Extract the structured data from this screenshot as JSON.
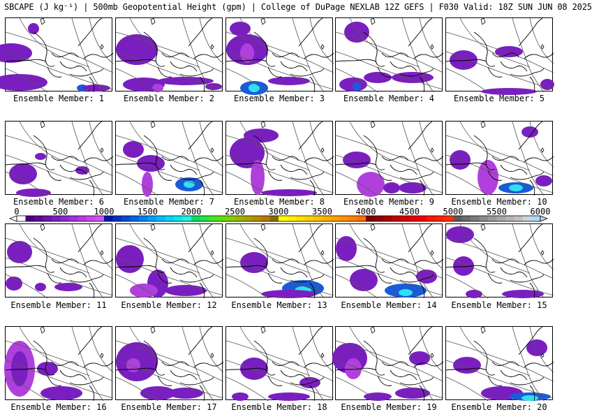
{
  "title": "SBCAPE (J kg⁻¹) | 500mb Geopotential Height (gpm) | College of DuPage NEXLAB 12Z GEFS | F030 Valid: 18Z SUN JUN 08 2025",
  "colorbar": {
    "tick_labels": [
      "0",
      "500",
      "1000",
      "1500",
      "2000",
      "2500",
      "3000",
      "3500",
      "4000",
      "4500",
      "5000",
      "5500",
      "6000"
    ],
    "segment_colors": [
      "#ffffff",
      "#4b0082",
      "#5a0a96",
      "#6a14aa",
      "#7a1ebe",
      "#8c28cc",
      "#a030d8",
      "#b43ce0",
      "#c848e8",
      "#d850ee",
      "#0018a8",
      "#0032c0",
      "#004cd4",
      "#0066e4",
      "#0082f0",
      "#00a0f8",
      "#00bcfc",
      "#00d6fc",
      "#00eaf4",
      "#20f4d8",
      "#00e060",
      "#20e440",
      "#40e820",
      "#60e000",
      "#80d000",
      "#98b800",
      "#a8a000",
      "#b48c00",
      "#b87800",
      "#8a6a00",
      "#ffff00",
      "#fff000",
      "#ffe000",
      "#ffd000",
      "#ffc000",
      "#ffb000",
      "#ffa000",
      "#ff9000",
      "#ff8000",
      "#ff7000",
      "#7a0000",
      "#900000",
      "#a80000",
      "#c00000",
      "#d80000",
      "#e80000",
      "#f00000",
      "#f81800",
      "#ff2000",
      "#ff3000",
      "#5a5a5a",
      "#6a6a6a",
      "#7a7a7a",
      "#8a8a8a",
      "#9a9a9a",
      "#a8a8a8",
      "#b4b4b4",
      "#c0c0c0",
      "#c8d8e0",
      "#b0d8f0"
    ]
  },
  "members": [
    {
      "caption": "Ensemble Member: 1"
    },
    {
      "caption": "Ensemble Member: 2"
    },
    {
      "caption": "Ensemble Member: 3"
    },
    {
      "caption": "Ensemble Member: 4"
    },
    {
      "caption": "Ensemble Member: 5"
    },
    {
      "caption": "Ensemble Member: 6"
    },
    {
      "caption": "Ensemble Member: 7"
    },
    {
      "caption": "Ensemble Member: 8"
    },
    {
      "caption": "Ensemble Member: 9"
    },
    {
      "caption": "Ensemble Member: 10"
    },
    {
      "caption": "Ensemble Member: 11"
    },
    {
      "caption": "Ensemble Member: 12"
    },
    {
      "caption": "Ensemble Member: 13"
    },
    {
      "caption": "Ensemble Member: 14"
    },
    {
      "caption": "Ensemble Member: 15"
    },
    {
      "caption": "Ensemble Member: 16"
    },
    {
      "caption": "Ensemble Member: 17"
    },
    {
      "caption": "Ensemble Member: 18"
    },
    {
      "caption": "Ensemble Member: 19"
    },
    {
      "caption": "Ensemble Member: 20"
    }
  ],
  "colors": {
    "cape_purple": "#7a1fbf",
    "cape_magenta": "#c040e0",
    "cape_blue": "#1a5cd8",
    "cape_cyan": "#20e0f0",
    "contour": "#555555",
    "coast": "#000000"
  }
}
